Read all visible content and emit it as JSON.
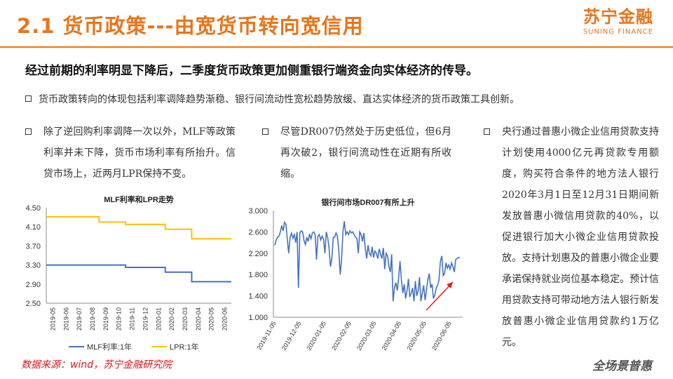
{
  "header": {
    "title": "2.1 货币政策---由宽货币转向宽信用",
    "logo_cn": "苏宁金融",
    "logo_en": "SUNING FINANCE",
    "accent": "#e8751a"
  },
  "lead": "经过前期的利率明显下降后，二季度货币政策更加侧重银行端资金向实体经济的传导。",
  "bullet_main": "货币政策转向的体现包括利率调降趋势渐稳、银行间流动性宽松趋势放缓、直达实体经济的货币政策工具创新。",
  "columns": [
    {
      "text": "除了逆回购利率调降一次以外，MLF等政策利率并未下降，货币市场利率有所抬升。信贷市场上，近两月LPR保持不变。"
    },
    {
      "text": "尽管DR007仍然处于历史低位，但6月再次破2，银行间流动性在近期有所收缩。"
    },
    {
      "text": "央行通过普惠小微企业信用贷款支持计划使用4000亿元再贷款专用额度，购买符合条件的地方法人银行2020年3月1日至12月31日期间新发放普惠小微信用贷款的40%，以促进银行加大小微企业信用贷款投放。支持计划惠及的普惠小微企业要承诺保持就业岗位基本稳定。预计信用贷款支持可带动地方法人银行新发放普惠小微企业信用贷款约1万亿元。"
    }
  ],
  "chart_data": [
    {
      "type": "line",
      "title": "MLF利率和LPR走势",
      "categories": [
        "2019-05",
        "2019-06",
        "2019-07",
        "2019-08",
        "2019-09",
        "2019-10",
        "2019-11",
        "2019-12",
        "2020-01",
        "2020-02",
        "2020-03",
        "2020-04",
        "2020-05",
        "2020-06"
      ],
      "series": [
        {
          "name": "MLF利率:1年",
          "color": "#4472c4",
          "values": [
            3.3,
            3.3,
            3.3,
            3.3,
            3.3,
            3.3,
            3.25,
            3.25,
            3.25,
            3.15,
            3.15,
            2.95,
            2.95,
            2.95
          ]
        },
        {
          "name": "LPR:1年",
          "color": "#ffc000",
          "values": [
            4.31,
            4.31,
            4.31,
            4.31,
            4.2,
            4.2,
            4.15,
            4.15,
            4.15,
            4.05,
            4.05,
            3.85,
            3.85,
            3.85
          ]
        }
      ],
      "ylim": [
        2.5,
        4.5
      ],
      "yticks": [
        "2.50",
        "2.90",
        "3.30",
        "3.70",
        "4.10",
        "4.50"
      ],
      "legend": "bottom"
    },
    {
      "type": "line",
      "title": "银行间市场DR007有所上升",
      "series": [
        {
          "name": "DR007",
          "color": "#4472c4",
          "values": [
            2.35,
            2.45,
            2.5,
            2.52,
            2.6,
            2.72,
            2.62,
            2.78,
            2.74,
            2.45,
            2.2,
            2.5,
            2.58,
            2.48,
            2.55,
            2.4,
            2.6,
            1.55,
            2.58,
            2.62,
            2.6,
            2.44,
            2.36,
            2.5,
            2.42,
            2.56,
            2.47,
            2.58,
            2.6,
            2.55,
            2.08,
            2.52,
            2.55,
            2.45,
            2.52,
            2.46,
            2.2,
            2.6,
            2.5,
            2.3,
            1.95,
            2.1,
            2.5,
            2.5,
            2.58,
            2.52,
            2.25,
            1.8,
            2.1,
            2.62,
            2.8,
            2.55,
            2.6,
            2.55,
            2.62,
            2.58,
            2.6,
            2.55,
            2.5,
            2.48,
            2.2,
            2.6,
            2.55,
            2.42,
            2.58,
            2.3,
            2.1,
            2.35,
            2.2,
            2.15,
            2.32,
            2.12,
            2.24,
            2.2,
            2.1,
            2.28,
            2.18,
            2.1,
            2.3,
            1.9,
            2.2,
            2.15,
            1.95,
            1.85,
            2.18,
            1.3,
            1.55,
            1.65,
            1.5,
            1.75,
            2.05,
            1.7,
            1.45,
            1.62,
            1.35,
            1.5,
            1.72,
            1.38,
            1.45,
            1.55,
            1.3,
            1.68,
            1.4,
            1.5,
            1.75,
            1.3,
            1.45,
            1.6,
            1.32,
            1.52,
            1.7,
            1.82,
            1.55,
            1.62,
            1.35,
            1.42,
            1.55,
            1.6,
            1.7,
            2.05,
            2.15,
            1.78,
            1.82,
            2.02,
            1.92,
            1.98,
            1.9,
            2.02,
            1.95,
            1.85,
            2.08,
            2.1,
            2.12,
            2.12
          ]
        }
      ],
      "ylim": [
        1.0,
        3.0
      ],
      "yticks": [
        "1.000",
        "1.400",
        "1.800",
        "2.200",
        "2.600",
        "3.000"
      ],
      "xticks": [
        "2019-11-05",
        "2019-12-05",
        "2020-01-05",
        "2020-02-05",
        "2020-03-05",
        "2020-04-05",
        "2020-05-05",
        "2020-06-05"
      ],
      "annotation": "upward-arrow"
    }
  ],
  "footer": {
    "source": "数据来源：wind，苏宁金融研究院",
    "slogan": "全场景普惠"
  }
}
